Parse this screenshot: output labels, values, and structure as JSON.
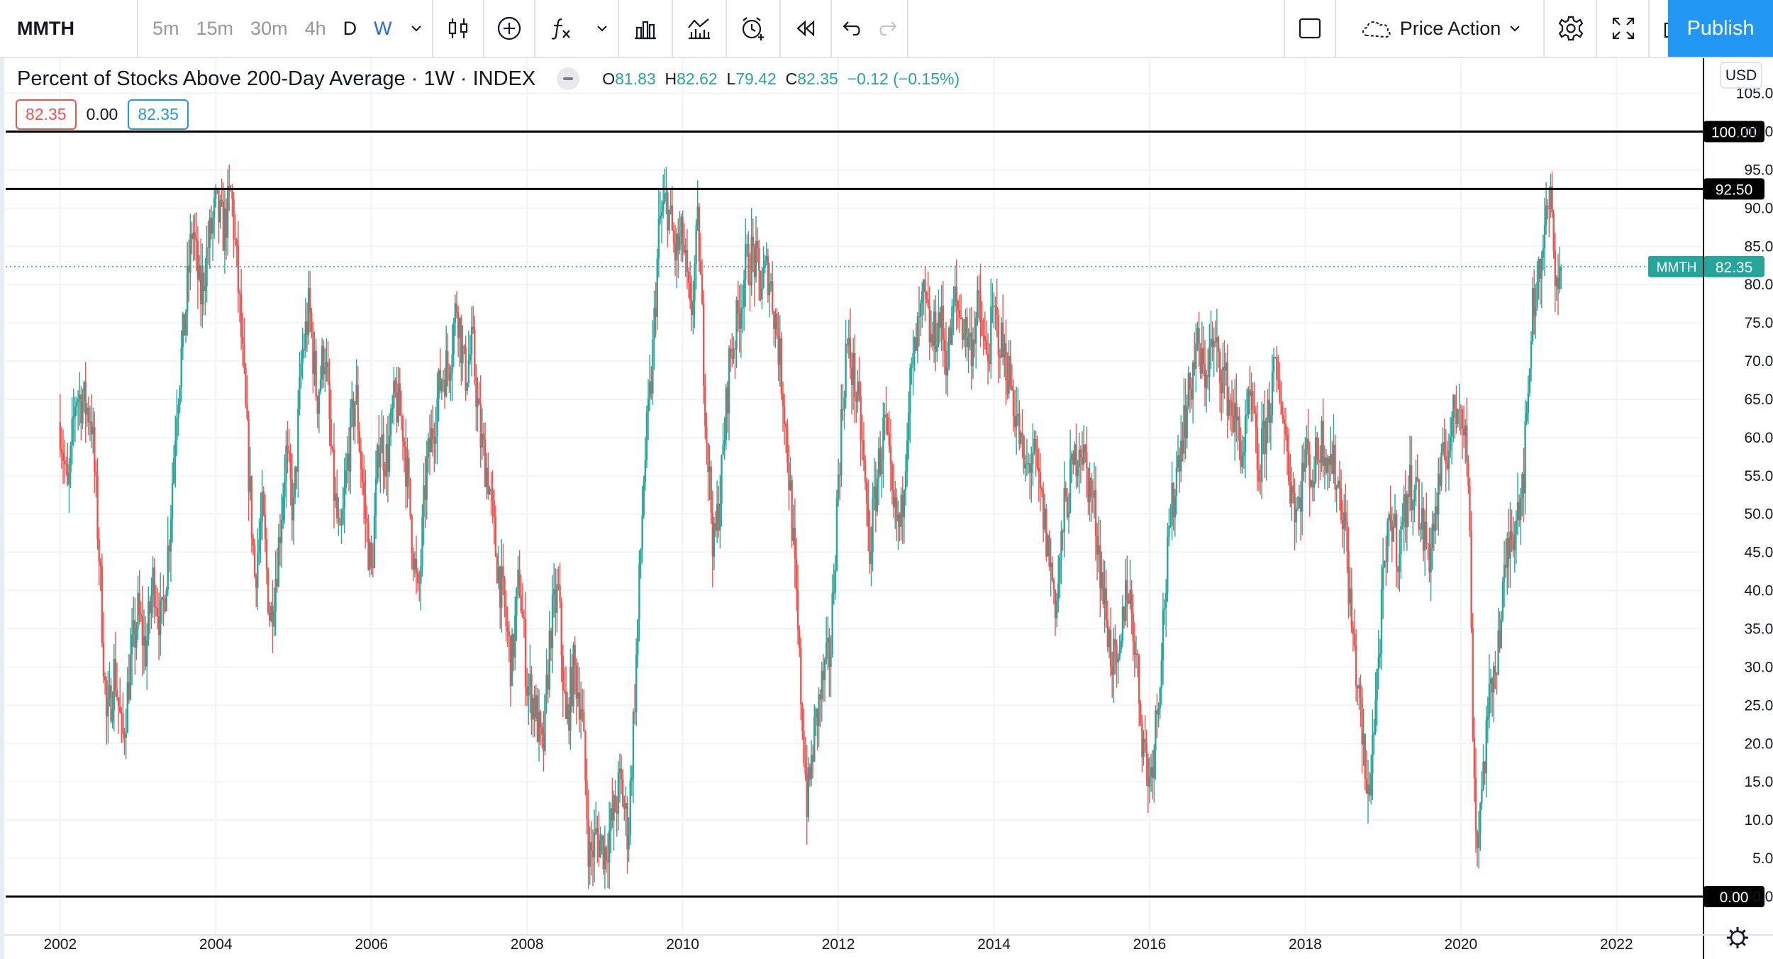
{
  "toolbar": {
    "symbol": "MMTH",
    "intervals": [
      "5m",
      "15m",
      "30m",
      "4h",
      "D",
      "W"
    ],
    "active_interval": "W",
    "template_name": "Price Action",
    "publish_label": "Publish"
  },
  "legend": {
    "title": "Percent of Stocks Above 200-Day Average · 1W · INDEX",
    "open_key": "O",
    "open": "81.83",
    "high_key": "H",
    "high": "82.62",
    "low_key": "L",
    "low": "79.42",
    "close_key": "C",
    "close": "82.35",
    "change": "−0.12 (−0.15%)",
    "input_1": "82.35",
    "input_2": "0.00",
    "input_3": "82.35"
  },
  "price_axis": {
    "currency": "USD",
    "tick_labels": [
      "0.00",
      "5.00",
      "10.00",
      "15.00",
      "20.00",
      "25.00",
      "30.00",
      "35.00",
      "40.00",
      "45.00",
      "50.00",
      "55.00",
      "60.00",
      "65.00",
      "70.00",
      "75.00",
      "80.00",
      "85.00",
      "90.00",
      "95.00",
      "100.00",
      "105.00"
    ],
    "last_price_symbol": "MMTH",
    "last_price": "82.35"
  },
  "horizontal_lines": [
    {
      "value": 100,
      "label": "100.00"
    },
    {
      "value": 92.5,
      "label": "92.50"
    },
    {
      "value": 0,
      "label": "0.00"
    }
  ],
  "colors": {
    "up": "#26a69a",
    "down": "#ef5350",
    "grid": "#f0f3fa",
    "accent": "#2962ff",
    "publish": "#2196f3"
  },
  "chart_data": {
    "type": "candlestick",
    "title": "Percent of Stocks Above 200-Day Average · 1W · INDEX",
    "xlabel": "",
    "ylabel": "",
    "ylim": [
      0,
      107
    ],
    "xlim": [
      2001.3,
      2023.1
    ],
    "x_tick_labels": [
      "2002",
      "2004",
      "2006",
      "2008",
      "2010",
      "2012",
      "2014",
      "2016",
      "2018",
      "2020",
      "2022"
    ],
    "x_ticks": [
      2002,
      2004,
      2006,
      2008,
      2010,
      2012,
      2014,
      2016,
      2018,
      2020,
      2022
    ],
    "grid": true,
    "price_path": [
      [
        2002.0,
        62
      ],
      [
        2002.1,
        52
      ],
      [
        2002.2,
        66
      ],
      [
        2002.4,
        63
      ],
      [
        2002.5,
        45
      ],
      [
        2002.6,
        22
      ],
      [
        2002.7,
        30
      ],
      [
        2002.8,
        20
      ],
      [
        2002.9,
        30
      ],
      [
        2003.0,
        37
      ],
      [
        2003.1,
        32
      ],
      [
        2003.2,
        42
      ],
      [
        2003.3,
        35
      ],
      [
        2003.4,
        47
      ],
      [
        2003.5,
        65
      ],
      [
        2003.6,
        75
      ],
      [
        2003.7,
        88
      ],
      [
        2003.8,
        78
      ],
      [
        2003.9,
        85
      ],
      [
        2004.0,
        90
      ],
      [
        2004.1,
        87
      ],
      [
        2004.2,
        92
      ],
      [
        2004.3,
        78
      ],
      [
        2004.4,
        60
      ],
      [
        2004.5,
        42
      ],
      [
        2004.6,
        50
      ],
      [
        2004.7,
        36
      ],
      [
        2004.8,
        45
      ],
      [
        2004.9,
        58
      ],
      [
        2005.0,
        50
      ],
      [
        2005.1,
        70
      ],
      [
        2005.2,
        77
      ],
      [
        2005.3,
        65
      ],
      [
        2005.4,
        72
      ],
      [
        2005.5,
        55
      ],
      [
        2005.6,
        45
      ],
      [
        2005.7,
        58
      ],
      [
        2005.8,
        66
      ],
      [
        2005.9,
        52
      ],
      [
        2006.0,
        42
      ],
      [
        2006.1,
        60
      ],
      [
        2006.2,
        57
      ],
      [
        2006.3,
        65
      ],
      [
        2006.4,
        62
      ],
      [
        2006.5,
        50
      ],
      [
        2006.6,
        38
      ],
      [
        2006.7,
        55
      ],
      [
        2006.8,
        62
      ],
      [
        2006.9,
        68
      ],
      [
        2007.0,
        70
      ],
      [
        2007.1,
        78
      ],
      [
        2007.2,
        68
      ],
      [
        2007.3,
        72
      ],
      [
        2007.4,
        60
      ],
      [
        2007.5,
        55
      ],
      [
        2007.6,
        45
      ],
      [
        2007.7,
        38
      ],
      [
        2007.8,
        30
      ],
      [
        2007.9,
        42
      ],
      [
        2008.0,
        28
      ],
      [
        2008.1,
        25
      ],
      [
        2008.2,
        18
      ],
      [
        2008.3,
        35
      ],
      [
        2008.4,
        40
      ],
      [
        2008.5,
        22
      ],
      [
        2008.6,
        30
      ],
      [
        2008.7,
        25
      ],
      [
        2008.8,
        5
      ],
      [
        2008.9,
        8
      ],
      [
        2009.0,
        6
      ],
      [
        2009.1,
        10
      ],
      [
        2009.2,
        15
      ],
      [
        2009.3,
        8
      ],
      [
        2009.4,
        30
      ],
      [
        2009.5,
        55
      ],
      [
        2009.6,
        68
      ],
      [
        2009.7,
        88
      ],
      [
        2009.8,
        91
      ],
      [
        2009.9,
        84
      ],
      [
        2010.0,
        86
      ],
      [
        2010.1,
        75
      ],
      [
        2010.2,
        88
      ],
      [
        2010.3,
        62
      ],
      [
        2010.4,
        45
      ],
      [
        2010.5,
        55
      ],
      [
        2010.6,
        70
      ],
      [
        2010.7,
        75
      ],
      [
        2010.8,
        82
      ],
      [
        2010.9,
        84
      ],
      [
        2011.0,
        80
      ],
      [
        2011.1,
        82
      ],
      [
        2011.2,
        75
      ],
      [
        2011.3,
        65
      ],
      [
        2011.4,
        50
      ],
      [
        2011.5,
        30
      ],
      [
        2011.6,
        12
      ],
      [
        2011.7,
        22
      ],
      [
        2011.8,
        28
      ],
      [
        2011.9,
        32
      ],
      [
        2012.0,
        55
      ],
      [
        2012.1,
        72
      ],
      [
        2012.2,
        68
      ],
      [
        2012.3,
        60
      ],
      [
        2012.4,
        45
      ],
      [
        2012.5,
        55
      ],
      [
        2012.6,
        62
      ],
      [
        2012.7,
        50
      ],
      [
        2012.8,
        48
      ],
      [
        2012.9,
        65
      ],
      [
        2013.0,
        72
      ],
      [
        2013.1,
        78
      ],
      [
        2013.2,
        72
      ],
      [
        2013.3,
        76
      ],
      [
        2013.4,
        70
      ],
      [
        2013.5,
        78
      ],
      [
        2013.6,
        75
      ],
      [
        2013.7,
        72
      ],
      [
        2013.8,
        77
      ],
      [
        2013.9,
        70
      ],
      [
        2014.0,
        76
      ],
      [
        2014.1,
        72
      ],
      [
        2014.2,
        68
      ],
      [
        2014.3,
        62
      ],
      [
        2014.4,
        55
      ],
      [
        2014.5,
        58
      ],
      [
        2014.6,
        52
      ],
      [
        2014.7,
        45
      ],
      [
        2014.8,
        38
      ],
      [
        2014.9,
        50
      ],
      [
        2015.0,
        55
      ],
      [
        2015.1,
        60
      ],
      [
        2015.2,
        55
      ],
      [
        2015.3,
        50
      ],
      [
        2015.4,
        40
      ],
      [
        2015.5,
        32
      ],
      [
        2015.6,
        28
      ],
      [
        2015.7,
        42
      ],
      [
        2015.8,
        35
      ],
      [
        2015.9,
        22
      ],
      [
        2016.0,
        15
      ],
      [
        2016.1,
        25
      ],
      [
        2016.2,
        40
      ],
      [
        2016.3,
        52
      ],
      [
        2016.4,
        60
      ],
      [
        2016.5,
        65
      ],
      [
        2016.6,
        72
      ],
      [
        2016.7,
        68
      ],
      [
        2016.8,
        72
      ],
      [
        2016.9,
        70
      ],
      [
        2017.0,
        66
      ],
      [
        2017.1,
        62
      ],
      [
        2017.2,
        58
      ],
      [
        2017.3,
        65
      ],
      [
        2017.4,
        55
      ],
      [
        2017.5,
        62
      ],
      [
        2017.6,
        68
      ],
      [
        2017.7,
        65
      ],
      [
        2017.8,
        55
      ],
      [
        2017.9,
        50
      ],
      [
        2018.0,
        58
      ],
      [
        2018.1,
        55
      ],
      [
        2018.2,
        60
      ],
      [
        2018.3,
        58
      ],
      [
        2018.4,
        55
      ],
      [
        2018.5,
        50
      ],
      [
        2018.6,
        35
      ],
      [
        2018.7,
        25
      ],
      [
        2018.8,
        12
      ],
      [
        2018.9,
        25
      ],
      [
        2019.0,
        40
      ],
      [
        2019.1,
        50
      ],
      [
        2019.2,
        45
      ],
      [
        2019.3,
        52
      ],
      [
        2019.4,
        55
      ],
      [
        2019.5,
        48
      ],
      [
        2019.6,
        45
      ],
      [
        2019.7,
        52
      ],
      [
        2019.8,
        58
      ],
      [
        2019.9,
        62
      ],
      [
        2020.0,
        66
      ],
      [
        2020.1,
        55
      ],
      [
        2020.15,
        25
      ],
      [
        2020.2,
        6
      ],
      [
        2020.3,
        18
      ],
      [
        2020.4,
        28
      ],
      [
        2020.5,
        35
      ],
      [
        2020.6,
        45
      ],
      [
        2020.7,
        50
      ],
      [
        2020.8,
        55
      ],
      [
        2020.85,
        62
      ],
      [
        2020.9,
        75
      ],
      [
        2021.0,
        82
      ],
      [
        2021.1,
        88
      ],
      [
        2021.15,
        91
      ],
      [
        2021.2,
        84
      ],
      [
        2021.25,
        80
      ],
      [
        2021.3,
        82.35
      ]
    ],
    "last_candle": {
      "open": 81.83,
      "high": 82.62,
      "low": 79.42,
      "close": 82.35
    }
  }
}
